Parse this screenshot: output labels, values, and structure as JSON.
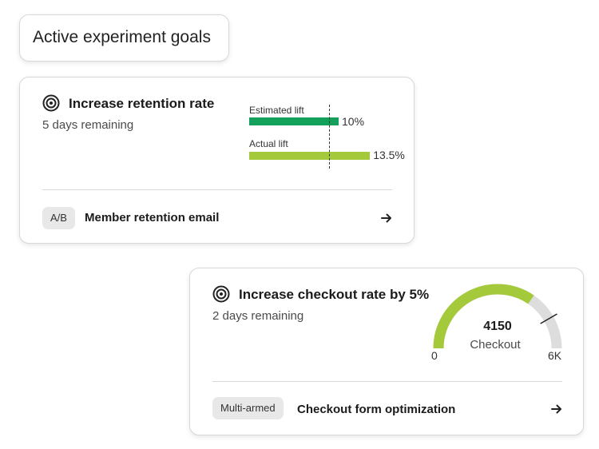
{
  "header": {
    "title": "Active experiment goals"
  },
  "goals": [
    {
      "title": "Increase retention rate",
      "remaining": "5 days remaining",
      "estimated_label": "Estimated lift",
      "estimated_value": "10%",
      "estimated_lift": 10,
      "actual_label": "Actual lift",
      "actual_value": "13.5%",
      "actual_lift": 13.5,
      "badge": "A/B",
      "experiment": "Member retention email"
    },
    {
      "title": "Increase checkout rate by 5%",
      "remaining": "2 days remaining",
      "gauge": {
        "value": 4150,
        "value_text": "4150",
        "label": "Checkout",
        "min_label": "0",
        "max_label": "6K",
        "max": 6000,
        "target": 5000
      },
      "badge": "Multi-armed",
      "experiment": "Checkout form optimization"
    }
  ],
  "colors": {
    "estimated": "#12a05a",
    "actual": "#a4c93a",
    "gauge_fill": "#a4c93a",
    "gauge_track": "#dddddd"
  }
}
